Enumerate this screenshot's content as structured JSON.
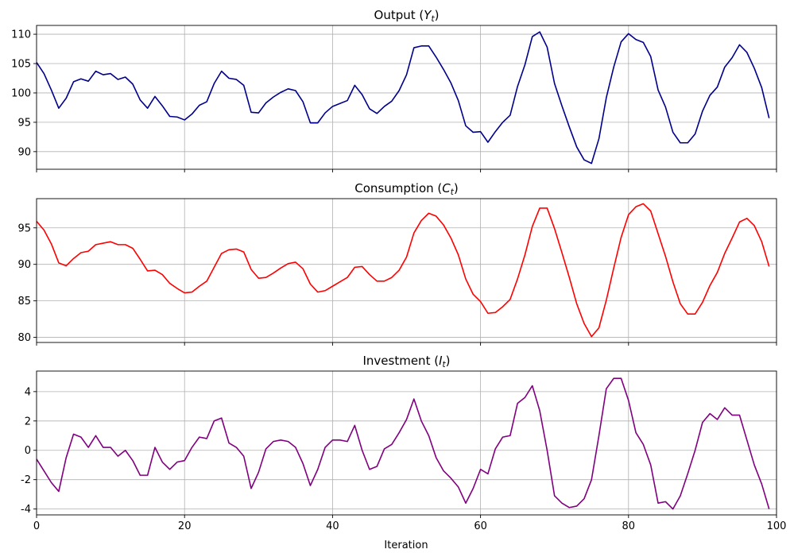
{
  "xlabel": "Iteration",
  "chart_data": [
    {
      "type": "line",
      "title": "Output (Y_t)",
      "title_main": "Output (",
      "title_var": "Y",
      "title_sub": "t",
      "title_end": ")",
      "color": "#00008b",
      "xlim": [
        0,
        100
      ],
      "ylim": [
        87,
        111.5
      ],
      "xticks": [
        0,
        20,
        40,
        60,
        80,
        100
      ],
      "yticks": [
        90,
        95,
        100,
        105,
        110
      ],
      "grid": true,
      "y": [
        105.2,
        103.3,
        100.5,
        97.4,
        99.1,
        101.9,
        102.4,
        102.0,
        103.7,
        103.1,
        103.3,
        102.3,
        102.7,
        101.5,
        98.8,
        97.4,
        99.4,
        97.8,
        96.0,
        95.9,
        95.4,
        96.4,
        97.9,
        98.5,
        101.6,
        103.7,
        102.5,
        102.3,
        101.3,
        96.7,
        96.6,
        98.3,
        99.3,
        100.1,
        100.7,
        100.4,
        98.5,
        94.9,
        94.9,
        96.6,
        97.7,
        98.2,
        98.7,
        101.3,
        99.7,
        97.3,
        96.5,
        97.7,
        98.6,
        100.4,
        103.1,
        107.7,
        108.0,
        108.0,
        106.1,
        104.0,
        101.7,
        98.7,
        94.4,
        93.3,
        93.4,
        91.6,
        93.4,
        95.0,
        96.2,
        101.1,
        104.8,
        109.6,
        110.4,
        107.8,
        101.6,
        97.8,
        94.2,
        90.8,
        88.6,
        88.0,
        92.2,
        99.2,
        104.4,
        108.7,
        110.1,
        109.1,
        108.6,
        106.2,
        100.5,
        97.6,
        93.3,
        91.5,
        91.5,
        93.0,
        96.9,
        99.6,
        101.0,
        104.4,
        106.0,
        108.2,
        106.9,
        104.2,
        100.9,
        95.7
      ]
    },
    {
      "type": "line",
      "title": "Consumption (C_t)",
      "title_main": "Consumption (",
      "title_var": "C",
      "title_sub": "t",
      "title_end": ")",
      "color": "#ff0000",
      "xlim": [
        0,
        100
      ],
      "ylim": [
        79.3,
        99.0
      ],
      "xticks": [
        0,
        20,
        40,
        60,
        80,
        100
      ],
      "yticks": [
        80,
        85,
        90,
        95
      ],
      "grid": true,
      "y": [
        95.9,
        94.7,
        92.8,
        90.2,
        89.8,
        90.8,
        91.6,
        91.8,
        92.7,
        92.9,
        93.1,
        92.7,
        92.7,
        92.2,
        90.7,
        89.1,
        89.2,
        88.6,
        87.4,
        86.7,
        86.1,
        86.2,
        87.0,
        87.7,
        89.6,
        91.5,
        92.0,
        92.1,
        91.7,
        89.3,
        88.1,
        88.2,
        88.8,
        89.5,
        90.1,
        90.3,
        89.4,
        87.3,
        86.2,
        86.4,
        87.0,
        87.6,
        88.2,
        89.6,
        89.7,
        88.6,
        87.7,
        87.7,
        88.2,
        89.2,
        91.0,
        94.3,
        96.0,
        97.0,
        96.6,
        95.4,
        93.6,
        91.3,
        88.0,
        85.9,
        84.9,
        83.3,
        83.4,
        84.2,
        85.2,
        88.0,
        91.3,
        95.2,
        97.7,
        97.7,
        94.9,
        91.6,
        88.2,
        84.6,
        81.9,
        80.1,
        81.3,
        85.1,
        89.5,
        93.7,
        96.8,
        97.9,
        98.3,
        97.3,
        94.2,
        91.1,
        87.6,
        84.6,
        83.2,
        83.2,
        84.8,
        87.1,
        88.9,
        91.5,
        93.6,
        95.8,
        96.3,
        95.3,
        93.1,
        89.7
      ]
    },
    {
      "type": "line",
      "title": "Investment (I_t)",
      "title_main": "Investment (",
      "title_var": "I",
      "title_sub": "t",
      "title_end": ")",
      "color": "#800080",
      "xlim": [
        0,
        100
      ],
      "ylim": [
        -4.4,
        5.4
      ],
      "xticks": [
        0,
        20,
        40,
        60,
        80,
        100
      ],
      "yticks": [
        -4,
        -2,
        0,
        2,
        4
      ],
      "grid": true,
      "y": [
        -0.6,
        -1.4,
        -2.2,
        -2.8,
        -0.5,
        1.1,
        0.9,
        0.2,
        1.0,
        0.2,
        0.2,
        -0.4,
        0.0,
        -0.7,
        -1.7,
        -1.7,
        0.2,
        -0.8,
        -1.3,
        -0.8,
        -0.7,
        0.2,
        0.9,
        0.8,
        2.0,
        2.2,
        0.5,
        0.2,
        -0.4,
        -2.6,
        -1.5,
        0.1,
        0.6,
        0.7,
        0.6,
        0.2,
        -0.9,
        -2.4,
        -1.3,
        0.2,
        0.7,
        0.7,
        0.6,
        1.7,
        0.0,
        -1.3,
        -1.1,
        0.1,
        0.4,
        1.2,
        2.1,
        3.5,
        2.0,
        1.0,
        -0.5,
        -1.4,
        -1.9,
        -2.5,
        -3.6,
        -2.6,
        -1.3,
        -1.6,
        0.1,
        0.9,
        1.0,
        3.2,
        3.6,
        4.4,
        2.7,
        0.0,
        -3.1,
        -3.6,
        -3.9,
        -3.8,
        -3.3,
        -2.0,
        1.0,
        4.2,
        4.9,
        4.9,
        3.4,
        1.2,
        0.4,
        -1.0,
        -3.6,
        -3.5,
        -4.0,
        -3.1,
        -1.6,
        0.0,
        1.9,
        2.5,
        2.1,
        2.9,
        2.4,
        2.4,
        0.7,
        -1.0,
        -2.3,
        -4.0
      ]
    }
  ]
}
